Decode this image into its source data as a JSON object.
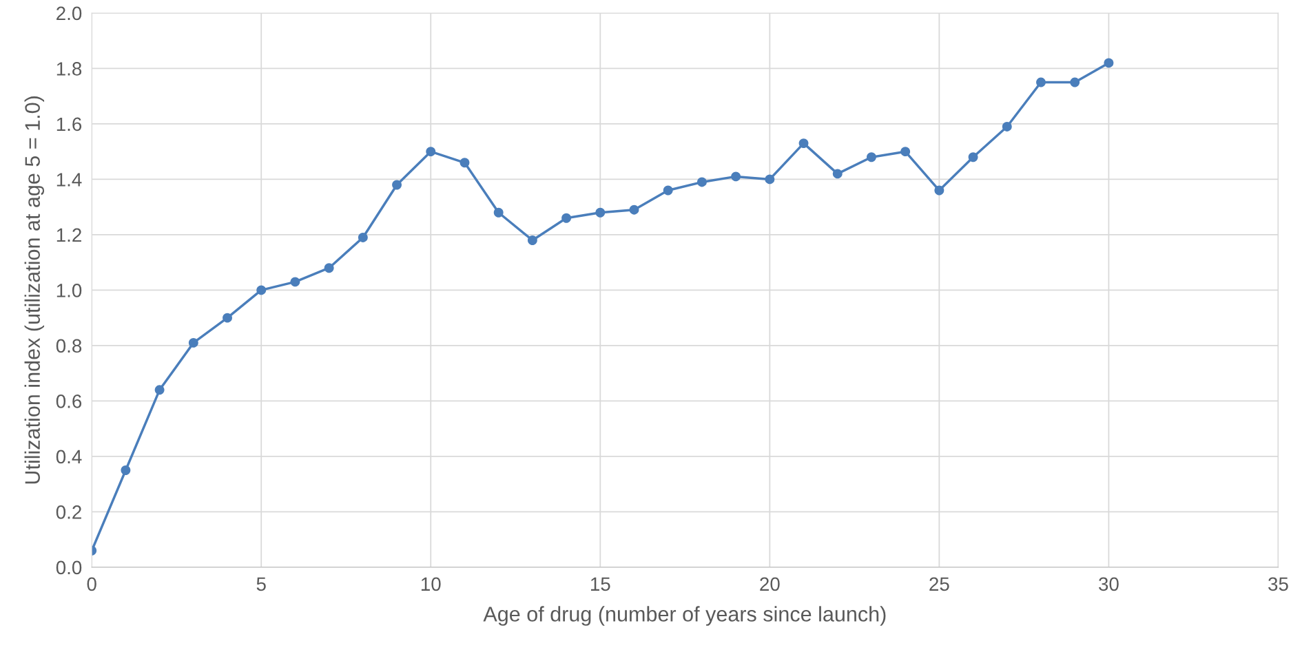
{
  "chart_data": {
    "type": "line",
    "xlabel": "Age of drug (number of years since launch)",
    "ylabel": "Utilization index (utilization at age 5 = 1.0)",
    "x": [
      0,
      1,
      2,
      3,
      4,
      5,
      6,
      7,
      8,
      9,
      10,
      11,
      12,
      13,
      14,
      15,
      16,
      17,
      18,
      19,
      20,
      21,
      22,
      23,
      24,
      25,
      26,
      27,
      28,
      29,
      30
    ],
    "series": [
      {
        "color": "#4a7ebb",
        "values": [
          0.06,
          0.35,
          0.64,
          0.81,
          0.9,
          1.0,
          1.03,
          1.08,
          1.19,
          1.38,
          1.5,
          1.46,
          1.28,
          1.18,
          1.26,
          1.28,
          1.29,
          1.36,
          1.39,
          1.41,
          1.4,
          1.53,
          1.42,
          1.48,
          1.5,
          1.36,
          1.48,
          1.59,
          1.75,
          1.75,
          1.82
        ]
      }
    ],
    "xlim": [
      0,
      35
    ],
    "xticks": [
      0,
      5,
      10,
      15,
      20,
      25,
      30,
      35
    ],
    "ylim": [
      0,
      2.0
    ],
    "yticks": [
      {
        "value": 0,
        "label": "0.0"
      },
      {
        "value": 0.2,
        "label": "0.2"
      },
      {
        "value": 0.4,
        "label": "0.4"
      },
      {
        "value": 0.6,
        "label": "0.6"
      },
      {
        "value": 0.8,
        "label": "0.8"
      },
      {
        "value": 1.0,
        "label": "1.0"
      },
      {
        "value": 1.2,
        "label": "1.2"
      },
      {
        "value": 1.4,
        "label": "1.4"
      },
      {
        "value": 1.6,
        "label": "1.6"
      },
      {
        "value": 1.8,
        "label": "1.8"
      },
      {
        "value": 2.0,
        "label": "2.0"
      }
    ],
    "grid": true,
    "marker": "circle",
    "line_style": "solid"
  }
}
